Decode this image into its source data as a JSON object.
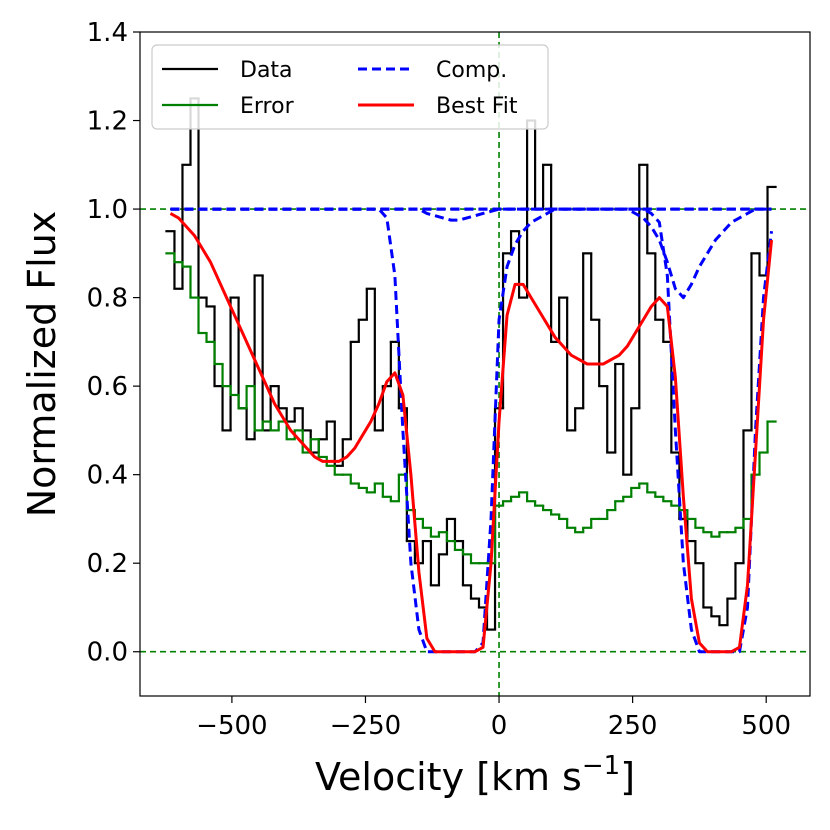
{
  "chart_data": {
    "type": "line",
    "xlabel": [
      "Velocity [km s",
      "−1",
      "]"
    ],
    "ylabel": "Normalized Flux",
    "xlim": [
      -672,
      582
    ],
    "ylim": [
      -0.1,
      1.4
    ],
    "xticks": [
      {
        "value": -500,
        "label": "−500"
      },
      {
        "value": -250,
        "label": "−250"
      },
      0,
      250,
      500
    ],
    "yticks": [
      {
        "value": 0,
        "label": "0.0"
      },
      {
        "value": 0.2,
        "label": "0.2"
      },
      {
        "value": 0.4,
        "label": "0.4"
      },
      {
        "value": 0.6,
        "label": "0.6"
      },
      {
        "value": 0.8,
        "label": "0.8"
      },
      {
        "value": 1,
        "label": "1.0"
      },
      {
        "value": 1.2,
        "label": "1.2"
      },
      {
        "value": 1.4,
        "label": "1.4"
      }
    ],
    "reference_lines": {
      "y": [
        0,
        1
      ],
      "x": [
        0
      ],
      "color": "#008000"
    },
    "legend": "upper left",
    "x": [
      -615,
      -600,
      -585,
      -570,
      -555,
      -540,
      -525,
      -510,
      -495,
      -480,
      -465,
      -450,
      -435,
      -420,
      -405,
      -390,
      -375,
      -360,
      -345,
      -330,
      -315,
      -300,
      -285,
      -270,
      -255,
      -240,
      -225,
      -210,
      -195,
      -180,
      -165,
      -150,
      -135,
      -120,
      -105,
      -90,
      -75,
      -60,
      -45,
      -30,
      -15,
      0,
      15,
      30,
      45,
      60,
      75,
      90,
      105,
      120,
      135,
      150,
      165,
      180,
      195,
      210,
      225,
      240,
      255,
      270,
      285,
      300,
      315,
      330,
      345,
      360,
      375,
      390,
      405,
      420,
      435,
      450,
      465,
      480,
      495,
      510
    ],
    "series": [
      {
        "name": "Data",
        "color": "#000000",
        "linestyle": "solid",
        "drawstyle": "steps-mid",
        "values": [
          0.95,
          0.82,
          1.1,
          1.25,
          0.8,
          0.78,
          0.6,
          0.5,
          0.8,
          0.55,
          0.48,
          0.85,
          0.5,
          0.6,
          0.55,
          0.52,
          0.55,
          0.5,
          0.45,
          0.48,
          0.52,
          0.42,
          0.48,
          0.7,
          0.75,
          0.82,
          0.5,
          0.6,
          0.7,
          0.55,
          0.25,
          0.2,
          0.25,
          0.15,
          0.22,
          0.3,
          0.25,
          0.15,
          0.12,
          0.1,
          0.05,
          0.55,
          0.9,
          0.95,
          0.8,
          1.2,
          1.0,
          1.1,
          0.7,
          0.8,
          0.5,
          0.55,
          0.9,
          0.75,
          0.6,
          0.45,
          0.65,
          0.4,
          0.55,
          1.1,
          0.9,
          0.75,
          0.7,
          0.45,
          0.3,
          0.25,
          0.2,
          0.1,
          0.08,
          0.06,
          0.12,
          0.2,
          0.5,
          0.9,
          0.85,
          1.05
        ]
      },
      {
        "name": "Error",
        "color": "#008000",
        "linestyle": "solid",
        "drawstyle": "steps-mid",
        "values": [
          0.9,
          0.88,
          0.87,
          0.8,
          0.72,
          0.7,
          0.65,
          0.6,
          0.58,
          0.55,
          0.6,
          0.5,
          0.52,
          0.5,
          0.52,
          0.48,
          0.5,
          0.45,
          0.48,
          0.44,
          0.42,
          0.4,
          0.4,
          0.38,
          0.37,
          0.36,
          0.38,
          0.35,
          0.34,
          0.4,
          0.32,
          0.3,
          0.28,
          0.26,
          0.27,
          0.25,
          0.23,
          0.22,
          0.2,
          0.2,
          0.2,
          0.33,
          0.34,
          0.35,
          0.36,
          0.34,
          0.33,
          0.32,
          0.31,
          0.3,
          0.28,
          0.27,
          0.28,
          0.3,
          0.3,
          0.32,
          0.34,
          0.35,
          0.37,
          0.38,
          0.36,
          0.35,
          0.34,
          0.33,
          0.32,
          0.3,
          0.28,
          0.27,
          0.26,
          0.27,
          0.27,
          0.28,
          0.3,
          0.4,
          0.45,
          0.52
        ]
      },
      {
        "name": "Comp.",
        "color": "#0000ff",
        "linestyle": "dashed",
        "drawstyle": "default",
        "values": [
          1,
          1,
          1,
          1,
          1,
          1,
          1,
          1,
          1,
          1,
          1,
          1,
          1,
          1,
          1,
          1,
          1,
          1,
          1,
          1,
          1,
          1,
          1,
          1,
          1,
          1,
          1,
          0.98,
          0.85,
          0.5,
          0.2,
          0.05,
          0,
          0,
          0,
          0,
          0,
          0,
          0,
          0.02,
          0.3,
          0.75,
          0.87,
          0.92,
          0.95,
          0.97,
          0.98,
          0.99,
          1,
          1,
          1,
          1,
          1,
          1,
          1,
          1,
          1,
          1,
          1,
          1,
          1,
          1,
          1,
          1,
          1,
          1,
          1,
          1,
          1,
          1,
          1,
          1,
          1,
          1,
          1,
          1
        ]
      },
      {
        "name": "Comp.",
        "color": "#0000ff",
        "linestyle": "dashed",
        "drawstyle": "default",
        "values": [
          1,
          1,
          1,
          1,
          1,
          1,
          1,
          1,
          1,
          1,
          1,
          1,
          1,
          1,
          1,
          1,
          1,
          1,
          1,
          1,
          1,
          1,
          1,
          1,
          1,
          1,
          1,
          1,
          1,
          1,
          1,
          1,
          0.99,
          0.985,
          0.98,
          0.975,
          0.975,
          0.98,
          0.985,
          0.99,
          0.995,
          1,
          1,
          1,
          1,
          1,
          1,
          1,
          1,
          1,
          1,
          1,
          1,
          1,
          1,
          1,
          1,
          1,
          1,
          1,
          1,
          1,
          1,
          1,
          1,
          1,
          1,
          1,
          1,
          1,
          1,
          1,
          1,
          1,
          1,
          1
        ]
      },
      {
        "name": "Comp.",
        "color": "#0000ff",
        "linestyle": "dashed",
        "drawstyle": "default",
        "values": [
          1,
          1,
          1,
          1,
          1,
          1,
          1,
          1,
          1,
          1,
          1,
          1,
          1,
          1,
          1,
          1,
          1,
          1,
          1,
          1,
          1,
          1,
          1,
          1,
          1,
          1,
          1,
          1,
          1,
          1,
          1,
          1,
          1,
          1,
          1,
          1,
          1,
          1,
          1,
          1,
          1,
          1,
          1,
          1,
          1,
          1,
          1,
          1,
          1,
          1,
          1,
          1,
          1,
          1,
          1,
          1,
          1,
          1,
          1,
          1,
          0.99,
          0.97,
          0.85,
          0.5,
          0.2,
          0.05,
          0,
          0,
          0,
          0,
          0,
          0,
          0.1,
          0.5,
          0.8,
          0.95
        ]
      },
      {
        "name": "Comp.",
        "color": "#0000ff",
        "linestyle": "dashed",
        "drawstyle": "default",
        "values": [
          1,
          1,
          1,
          1,
          1,
          1,
          1,
          1,
          1,
          1,
          1,
          1,
          1,
          1,
          1,
          1,
          1,
          1,
          1,
          1,
          1,
          1,
          1,
          1,
          1,
          1,
          1,
          1,
          1,
          1,
          1,
          1,
          1,
          1,
          1,
          1,
          1,
          1,
          1,
          1,
          1,
          1,
          1,
          1,
          1,
          1,
          1,
          1,
          1,
          1,
          1,
          1,
          1,
          1,
          1,
          1,
          1,
          1,
          0.99,
          0.98,
          0.96,
          0.93,
          0.88,
          0.82,
          0.8,
          0.83,
          0.87,
          0.9,
          0.93,
          0.95,
          0.97,
          0.98,
          0.99,
          1,
          1,
          1
        ]
      },
      {
        "name": "Best Fit",
        "color": "#ff0000",
        "linestyle": "solid",
        "drawstyle": "default",
        "values": [
          0.99,
          0.98,
          0.96,
          0.94,
          0.91,
          0.88,
          0.84,
          0.8,
          0.76,
          0.72,
          0.68,
          0.64,
          0.6,
          0.56,
          0.53,
          0.5,
          0.48,
          0.46,
          0.44,
          0.43,
          0.43,
          0.43,
          0.44,
          0.46,
          0.49,
          0.52,
          0.56,
          0.61,
          0.63,
          0.58,
          0.4,
          0.18,
          0.03,
          0,
          0,
          0,
          0,
          0,
          0,
          0.01,
          0.2,
          0.52,
          0.76,
          0.83,
          0.83,
          0.8,
          0.77,
          0.74,
          0.71,
          0.69,
          0.67,
          0.66,
          0.65,
          0.65,
          0.65,
          0.66,
          0.67,
          0.69,
          0.72,
          0.75,
          0.78,
          0.8,
          0.78,
          0.62,
          0.35,
          0.12,
          0.02,
          0,
          0,
          0,
          0,
          0.01,
          0.15,
          0.45,
          0.75,
          0.93
        ]
      }
    ]
  }
}
